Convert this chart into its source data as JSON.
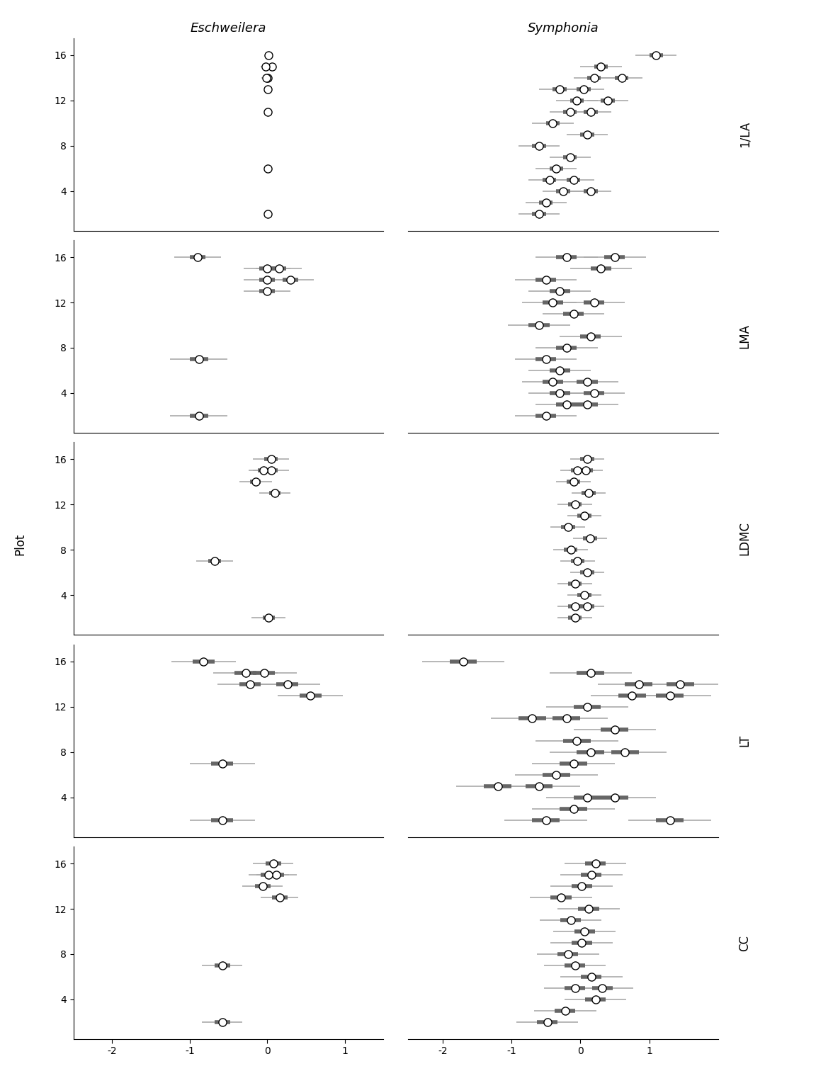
{
  "traits": [
    "LA",
    "LMA",
    "LDMC",
    "LT",
    "CC"
  ],
  "trait_labels": [
    "1/LA",
    "LMA",
    "LDMC",
    "LT",
    "CC"
  ],
  "ylabel": "Plot",
  "background_color": "#ffffff",
  "title_fontsize": 13,
  "tick_fontsize": 10,
  "eschweilera": {
    "LA": {
      "plots": [
        16,
        15,
        15,
        14,
        14,
        13,
        11,
        6,
        2
      ],
      "mean": [
        0.02,
        0.06,
        -0.02,
        0.01,
        -0.01,
        0.01,
        0.01,
        0.01,
        0.01
      ],
      "ci50_lo": [
        0.01,
        0.04,
        -0.04,
        0.0,
        -0.03,
        0.0,
        0.0,
        0.0,
        0.0
      ],
      "ci50_hi": [
        0.03,
        0.08,
        0.0,
        0.02,
        0.01,
        0.02,
        0.02,
        0.02,
        0.02
      ],
      "ci95_lo": [
        -0.01,
        0.01,
        -0.08,
        -0.02,
        -0.07,
        -0.02,
        -0.02,
        -0.03,
        -0.03
      ],
      "ci95_hi": [
        0.05,
        0.11,
        0.04,
        0.04,
        0.05,
        0.04,
        0.04,
        0.05,
        0.05
      ]
    },
    "LMA": {
      "plots": [
        16,
        15,
        15,
        14,
        14,
        13,
        7,
        2
      ],
      "mean": [
        -0.9,
        0.0,
        0.15,
        0.0,
        0.3,
        0.0,
        -0.88,
        -0.88
      ],
      "ci50_lo": [
        -1.0,
        -0.1,
        0.05,
        -0.1,
        0.2,
        -0.1,
        -1.0,
        -1.0
      ],
      "ci50_hi": [
        -0.8,
        0.1,
        0.25,
        0.1,
        0.4,
        0.1,
        -0.76,
        -0.76
      ],
      "ci95_lo": [
        -1.2,
        -0.3,
        -0.15,
        -0.3,
        0.0,
        -0.3,
        -1.25,
        -1.25
      ],
      "ci95_hi": [
        -0.6,
        0.3,
        0.45,
        0.3,
        0.6,
        0.3,
        -0.51,
        -0.51
      ]
    },
    "LDMC": {
      "plots": [
        16,
        15,
        15,
        14,
        13,
        7,
        2
      ],
      "mean": [
        0.05,
        0.05,
        -0.05,
        -0.15,
        0.1,
        -0.68,
        0.02
      ],
      "ci50_lo": [
        -0.04,
        -0.04,
        -0.12,
        -0.22,
        0.03,
        -0.76,
        -0.06
      ],
      "ci50_hi": [
        0.14,
        0.14,
        0.02,
        -0.08,
        0.17,
        -0.6,
        0.1
      ],
      "ci95_lo": [
        -0.18,
        -0.18,
        -0.24,
        -0.36,
        -0.1,
        -0.92,
        -0.2
      ],
      "ci95_hi": [
        0.28,
        0.28,
        0.14,
        0.06,
        0.3,
        -0.44,
        0.24
      ]
    },
    "LT": {
      "plots": [
        16,
        15,
        15,
        14,
        14,
        13,
        7,
        2
      ],
      "mean": [
        -0.82,
        -0.28,
        -0.04,
        -0.22,
        0.26,
        0.56,
        -0.58,
        -0.58
      ],
      "ci50_lo": [
        -0.96,
        -0.42,
        -0.18,
        -0.36,
        0.12,
        0.42,
        -0.72,
        -0.72
      ],
      "ci50_hi": [
        -0.68,
        -0.14,
        0.1,
        -0.08,
        0.4,
        0.7,
        -0.44,
        -0.44
      ],
      "ci95_lo": [
        -1.24,
        -0.7,
        -0.46,
        -0.64,
        -0.16,
        0.14,
        -1.0,
        -1.0
      ],
      "ci95_hi": [
        -0.4,
        0.14,
        0.38,
        0.2,
        0.68,
        0.98,
        -0.16,
        -0.16
      ]
    },
    "CC": {
      "plots": [
        16,
        15,
        15,
        14,
        13,
        7,
        2
      ],
      "mean": [
        0.08,
        0.12,
        0.02,
        -0.06,
        0.16,
        -0.58,
        -0.58
      ],
      "ci50_lo": [
        -0.02,
        0.02,
        -0.08,
        -0.16,
        0.06,
        -0.68,
        -0.68
      ],
      "ci50_hi": [
        0.18,
        0.22,
        0.12,
        0.04,
        0.26,
        -0.48,
        -0.48
      ],
      "ci95_lo": [
        -0.18,
        -0.14,
        -0.24,
        -0.32,
        -0.08,
        -0.84,
        -0.84
      ],
      "ci95_hi": [
        0.34,
        0.38,
        0.28,
        0.2,
        0.4,
        -0.32,
        -0.32
      ]
    }
  },
  "symphonia": {
    "LA": {
      "plots": [
        16,
        15,
        14,
        14,
        13,
        13,
        12,
        12,
        11,
        11,
        10,
        9,
        8,
        7,
        6,
        5,
        5,
        4,
        4,
        3,
        2
      ],
      "mean": [
        1.1,
        0.3,
        0.6,
        0.2,
        0.05,
        -0.3,
        0.4,
        -0.05,
        0.15,
        -0.15,
        -0.4,
        0.1,
        -0.6,
        -0.15,
        -0.35,
        -0.1,
        -0.45,
        0.15,
        -0.25,
        -0.5,
        -0.6
      ],
      "ci50_lo": [
        1.0,
        0.2,
        0.5,
        0.1,
        -0.05,
        -0.4,
        0.3,
        -0.15,
        0.05,
        -0.25,
        -0.5,
        0.0,
        -0.7,
        -0.25,
        -0.45,
        -0.2,
        -0.55,
        0.05,
        -0.35,
        -0.6,
        -0.7
      ],
      "ci50_hi": [
        1.2,
        0.4,
        0.7,
        0.3,
        0.15,
        -0.2,
        0.5,
        0.05,
        0.25,
        -0.05,
        -0.3,
        0.2,
        -0.5,
        -0.05,
        -0.25,
        0.0,
        -0.35,
        0.25,
        -0.15,
        -0.4,
        -0.5
      ],
      "ci95_lo": [
        0.8,
        0.0,
        0.3,
        -0.1,
        -0.25,
        -0.6,
        0.1,
        -0.35,
        -0.15,
        -0.45,
        -0.7,
        -0.2,
        -0.9,
        -0.45,
        -0.65,
        -0.4,
        -0.75,
        -0.15,
        -0.55,
        -0.8,
        -0.9
      ],
      "ci95_hi": [
        1.4,
        0.6,
        0.9,
        0.5,
        0.35,
        0.0,
        0.7,
        0.25,
        0.45,
        0.15,
        -0.1,
        0.4,
        -0.3,
        0.15,
        -0.05,
        0.2,
        -0.15,
        0.45,
        0.05,
        -0.2,
        -0.3
      ]
    },
    "LMA": {
      "plots": [
        16,
        16,
        15,
        14,
        13,
        12,
        12,
        11,
        10,
        9,
        8,
        7,
        6,
        5,
        5,
        4,
        4,
        3,
        3,
        2
      ],
      "mean": [
        0.5,
        -0.2,
        0.3,
        -0.5,
        -0.3,
        0.2,
        -0.4,
        -0.1,
        -0.6,
        0.15,
        -0.2,
        -0.5,
        -0.3,
        0.1,
        -0.4,
        0.2,
        -0.3,
        0.1,
        -0.2,
        -0.5
      ],
      "ci50_lo": [
        0.35,
        -0.35,
        0.15,
        -0.65,
        -0.45,
        0.05,
        -0.55,
        -0.25,
        -0.75,
        0.0,
        -0.35,
        -0.65,
        -0.45,
        -0.05,
        -0.55,
        0.05,
        -0.45,
        -0.05,
        -0.35,
        -0.65
      ],
      "ci50_hi": [
        0.65,
        -0.05,
        0.45,
        -0.35,
        -0.15,
        0.35,
        -0.25,
        0.05,
        -0.45,
        0.3,
        -0.05,
        -0.35,
        -0.15,
        0.25,
        -0.25,
        0.35,
        -0.15,
        0.25,
        -0.05,
        -0.35
      ],
      "ci95_lo": [
        0.05,
        -0.65,
        -0.15,
        -0.95,
        -0.75,
        -0.25,
        -0.85,
        -0.55,
        -1.05,
        -0.3,
        -0.65,
        -0.95,
        -0.75,
        -0.35,
        -0.85,
        -0.25,
        -0.75,
        -0.35,
        -0.65,
        -0.95
      ],
      "ci95_hi": [
        0.95,
        0.25,
        0.75,
        -0.05,
        0.15,
        0.65,
        -0.05,
        0.35,
        -0.15,
        0.6,
        0.25,
        -0.05,
        0.15,
        0.55,
        0.05,
        0.65,
        0.15,
        0.55,
        0.25,
        -0.05
      ]
    },
    "LDMC": {
      "plots": [
        16,
        15,
        15,
        14,
        13,
        12,
        11,
        10,
        9,
        8,
        7,
        6,
        5,
        4,
        3,
        3,
        2
      ],
      "mean": [
        0.1,
        0.08,
        -0.04,
        -0.1,
        0.12,
        -0.08,
        0.06,
        -0.18,
        0.14,
        -0.14,
        -0.04,
        0.1,
        -0.08,
        0.06,
        0.1,
        -0.08,
        -0.08
      ],
      "ci50_lo": [
        0.0,
        -0.02,
        -0.14,
        -0.2,
        0.02,
        -0.18,
        -0.04,
        -0.28,
        0.04,
        -0.24,
        -0.14,
        0.0,
        -0.18,
        -0.04,
        0.0,
        -0.18,
        -0.18
      ],
      "ci50_hi": [
        0.2,
        0.18,
        0.06,
        0.0,
        0.22,
        0.02,
        0.16,
        -0.08,
        0.24,
        -0.04,
        0.06,
        0.2,
        0.02,
        0.16,
        0.2,
        0.02,
        0.02
      ],
      "ci95_lo": [
        -0.15,
        -0.17,
        -0.29,
        -0.35,
        -0.13,
        -0.33,
        -0.19,
        -0.43,
        -0.11,
        -0.39,
        -0.29,
        -0.15,
        -0.33,
        -0.19,
        -0.15,
        -0.33,
        -0.33
      ],
      "ci95_hi": [
        0.35,
        0.33,
        0.21,
        0.15,
        0.37,
        0.17,
        0.31,
        0.07,
        0.39,
        0.11,
        0.21,
        0.35,
        0.17,
        0.31,
        0.35,
        0.17,
        0.17
      ]
    },
    "LT": {
      "plots": [
        16,
        15,
        14,
        14,
        13,
        13,
        12,
        11,
        11,
        10,
        9,
        8,
        8,
        7,
        6,
        5,
        5,
        4,
        4,
        3,
        2,
        2
      ],
      "mean": [
        -1.7,
        0.15,
        1.45,
        0.85,
        1.3,
        0.75,
        0.1,
        -0.7,
        -0.2,
        0.5,
        -0.05,
        0.65,
        0.15,
        -0.1,
        -0.35,
        -1.2,
        -0.6,
        0.5,
        0.1,
        -0.1,
        1.3,
        -0.5
      ],
      "ci50_lo": [
        -1.9,
        -0.05,
        1.25,
        0.65,
        1.1,
        0.55,
        -0.1,
        -0.9,
        -0.4,
        0.3,
        -0.25,
        0.45,
        -0.05,
        -0.3,
        -0.55,
        -1.4,
        -0.8,
        0.3,
        -0.1,
        -0.3,
        1.1,
        -0.7
      ],
      "ci50_hi": [
        -1.5,
        0.35,
        1.65,
        1.05,
        1.5,
        0.95,
        0.3,
        -0.5,
        0.0,
        0.7,
        0.15,
        0.85,
        0.35,
        0.1,
        -0.15,
        -1.0,
        -0.4,
        0.7,
        0.3,
        0.1,
        1.5,
        -0.3
      ],
      "ci95_lo": [
        -2.3,
        -0.45,
        0.85,
        0.25,
        0.7,
        0.15,
        -0.5,
        -1.3,
        -0.8,
        -0.1,
        -0.65,
        0.05,
        -0.45,
        -0.7,
        -0.95,
        -1.8,
        -1.2,
        -0.1,
        -0.5,
        -0.7,
        0.7,
        -1.1
      ],
      "ci95_hi": [
        -1.1,
        0.75,
        2.05,
        1.45,
        1.9,
        1.35,
        0.7,
        -0.1,
        0.4,
        1.1,
        0.55,
        1.25,
        0.75,
        0.5,
        0.25,
        -0.6,
        0.0,
        1.1,
        0.7,
        0.5,
        1.9,
        0.1
      ]
    },
    "CC": {
      "plots": [
        16,
        15,
        14,
        13,
        12,
        11,
        10,
        9,
        8,
        7,
        6,
        5,
        5,
        4,
        3,
        2
      ],
      "mean": [
        0.22,
        0.16,
        0.02,
        -0.28,
        0.12,
        -0.14,
        0.06,
        0.02,
        -0.18,
        -0.08,
        0.16,
        0.32,
        -0.08,
        0.22,
        -0.22,
        -0.48
      ],
      "ci50_lo": [
        0.07,
        0.01,
        -0.13,
        -0.43,
        -0.03,
        -0.29,
        -0.09,
        -0.13,
        -0.33,
        -0.23,
        0.01,
        0.17,
        -0.23,
        0.07,
        -0.37,
        -0.63
      ],
      "ci50_hi": [
        0.37,
        0.31,
        0.17,
        -0.13,
        0.27,
        0.01,
        0.21,
        0.17,
        -0.03,
        0.07,
        0.31,
        0.47,
        0.07,
        0.37,
        -0.07,
        -0.33
      ],
      "ci95_lo": [
        -0.23,
        -0.29,
        -0.43,
        -0.73,
        -0.33,
        -0.59,
        -0.39,
        -0.43,
        -0.63,
        -0.53,
        -0.29,
        -0.13,
        -0.53,
        -0.23,
        -0.67,
        -0.93
      ],
      "ci95_hi": [
        0.67,
        0.61,
        0.47,
        0.17,
        0.57,
        0.31,
        0.51,
        0.47,
        0.27,
        0.37,
        0.61,
        0.77,
        0.37,
        0.67,
        0.23,
        -0.03
      ]
    }
  },
  "circle_color": "#000000",
  "circle_facecolor": "#ffffff",
  "ci50_color": "#666666",
  "ci95_color": "#aaaaaa",
  "xlim_esch": [
    -2.5,
    1.5
  ],
  "xlim_sym": [
    -2.5,
    2.0
  ],
  "xticks_esch": [
    -2,
    -1,
    0,
    1
  ],
  "xticks_sym": [
    -2,
    -1,
    0,
    1
  ],
  "yticks": [
    4,
    8,
    12,
    16
  ],
  "ylim": [
    0.5,
    17.5
  ]
}
